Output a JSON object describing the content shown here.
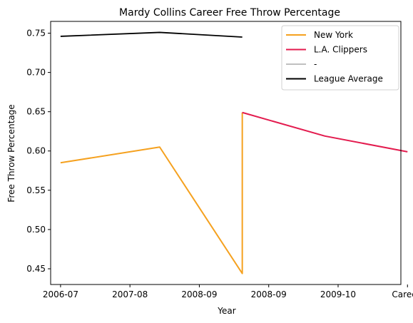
{
  "chart_data": {
    "type": "line",
    "title": "Mardy Collins Career Free Throw Percentage",
    "xlabel": "Year",
    "ylabel": "Free Throw Percentage",
    "categories": [
      "2006-07",
      "2007-08",
      "2008-09",
      "2008-09",
      "2009-10",
      "Career-"
    ],
    "ylim": [
      0.43,
      0.765
    ],
    "yticks": [
      0.45,
      0.5,
      0.55,
      0.6,
      0.65,
      0.7,
      0.75
    ],
    "ytick_labels": [
      "0.45",
      "0.50",
      "0.55",
      "0.60",
      "0.65",
      "0.70",
      "0.75"
    ],
    "grid": false,
    "legend_position": "top-right",
    "series": [
      {
        "name": "New York",
        "color": "#f5a11f",
        "points": [
          [
            0,
            0.585
          ],
          [
            1.2,
            0.605
          ],
          [
            2.2,
            0.444
          ],
          [
            2.2,
            0.649
          ]
        ]
      },
      {
        "name": "L.A. Clippers",
        "color": "#e31b4e",
        "points": [
          [
            2.2,
            0.649
          ],
          [
            3.2,
            0.619
          ],
          [
            4.2,
            0.599
          ]
        ]
      },
      {
        "name": "-",
        "color": "#c0c0c0",
        "points": []
      },
      {
        "name": "League Average",
        "color": "#000000",
        "points": [
          [
            0,
            0.746
          ],
          [
            1.2,
            0.751
          ],
          [
            2.2,
            0.745
          ]
        ]
      }
    ]
  }
}
